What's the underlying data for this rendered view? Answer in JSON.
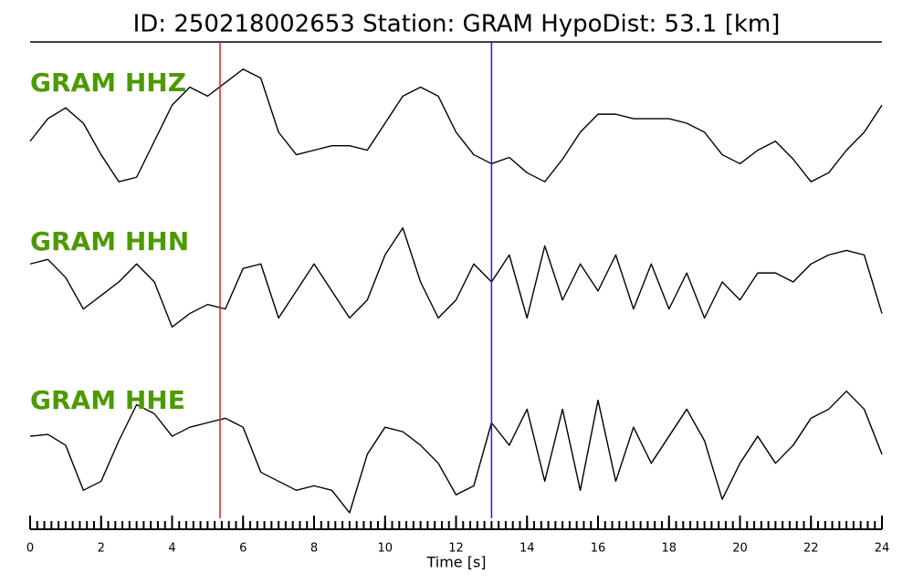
{
  "chart_data": {
    "type": "seismogram",
    "title": "ID: 250218002653   Station: GRAM   HypoDist:    53.1 [km]",
    "xlabel": "Time [s]",
    "xlim": [
      0,
      24
    ],
    "xticks": [
      0,
      2,
      4,
      6,
      8,
      10,
      12,
      14,
      16,
      18,
      20,
      22,
      24
    ],
    "xminorticks": [
      0,
      0.2,
      0.4,
      0.6,
      0.8,
      1,
      1.2,
      1.4,
      1.6,
      1.8,
      2,
      2.2,
      2.4,
      2.6,
      2.8,
      3,
      3.2,
      3.4,
      3.6,
      3.8,
      4,
      4.2,
      4.4,
      4.6,
      4.8,
      5,
      5.2,
      5.4,
      5.6,
      5.8,
      6,
      6.2,
      6.4,
      6.6,
      6.8,
      7,
      7.2,
      7.4,
      7.6,
      7.8,
      8,
      8.2,
      8.4,
      8.6,
      8.8,
      9,
      9.2,
      9.4,
      9.6,
      9.8,
      10,
      10.2,
      10.4,
      10.6,
      10.8,
      11,
      11.2,
      11.4,
      11.6,
      11.8,
      12,
      12.2,
      12.4,
      12.6,
      12.8,
      13,
      13.2,
      13.4,
      13.6,
      13.8,
      14,
      14.2,
      14.4,
      14.6,
      14.8,
      15,
      15.2,
      15.4,
      15.6,
      15.8,
      16,
      16.2,
      16.4,
      16.6,
      16.8,
      17,
      17.2,
      17.4,
      17.6,
      17.8,
      18,
      18.2,
      18.4,
      18.6,
      18.8,
      19,
      19.2,
      19.4,
      19.6,
      19.8,
      20,
      20.2,
      20.4,
      20.6,
      20.8,
      21,
      21.2,
      21.4,
      21.6,
      21.8,
      22,
      22.2,
      22.4,
      22.6,
      22.8,
      23,
      23.2,
      23.4,
      23.6,
      23.8,
      24
    ],
    "markers": [
      {
        "x": 5.35,
        "color": "#e41a1c"
      },
      {
        "x": 13.0,
        "color": "#1f1fd6"
      }
    ],
    "label_color": "#4d9a00",
    "x": [
      0,
      0.5,
      1,
      1.5,
      2,
      2.5,
      3,
      3.5,
      4,
      4.5,
      5,
      5.5,
      6,
      6.5,
      7,
      7.5,
      8,
      8.5,
      9,
      9.5,
      10,
      10.5,
      11,
      11.5,
      12,
      12.5,
      13,
      13.5,
      14,
      14.5,
      15,
      15.5,
      16,
      16.5,
      17,
      17.5,
      18,
      18.5,
      19,
      19.5,
      20,
      20.5,
      21,
      21.5,
      22,
      22.5,
      23,
      23.5,
      24
    ],
    "series": [
      {
        "name": "GRAM HHZ",
        "color": "#000000",
        "ylim": [
          -80,
          80
        ],
        "values": [
          -20,
          5,
          17,
          0,
          -35,
          -65,
          -60,
          -20,
          20,
          40,
          30,
          45,
          60,
          50,
          -10,
          -35,
          -30,
          -25,
          -25,
          -30,
          0,
          30,
          40,
          30,
          -10,
          -35,
          -45,
          -38,
          -55,
          -65,
          -40,
          -10,
          10,
          10,
          5,
          5,
          5,
          0,
          -10,
          -35,
          -45,
          -30,
          -20,
          -40,
          -65,
          -55,
          -30,
          -10,
          20
        ]
      },
      {
        "name": "GRAM HHN",
        "color": "#000000",
        "ylim": [
          -80,
          80
        ],
        "values": [
          20,
          25,
          5,
          -30,
          -15,
          0,
          20,
          0,
          -50,
          -35,
          -25,
          -30,
          15,
          20,
          -40,
          -10,
          20,
          -10,
          -40,
          -20,
          30,
          60,
          0,
          -40,
          -20,
          20,
          0,
          30,
          -40,
          40,
          -20,
          20,
          -10,
          30,
          -30,
          20,
          -30,
          10,
          -40,
          0,
          -20,
          10,
          10,
          0,
          20,
          30,
          35,
          30,
          -35
        ]
      },
      {
        "name": "GRAM HHE",
        "color": "#000000",
        "ylim": [
          -80,
          80
        ],
        "values": [
          5,
          7,
          -5,
          -55,
          -45,
          0,
          40,
          30,
          5,
          15,
          20,
          25,
          15,
          -35,
          -45,
          -55,
          -50,
          -55,
          -80,
          -15,
          15,
          10,
          -5,
          -25,
          -60,
          -50,
          20,
          -5,
          35,
          -45,
          35,
          -55,
          45,
          -45,
          15,
          -25,
          5,
          35,
          0,
          -65,
          -25,
          5,
          -25,
          -5,
          25,
          35,
          55,
          35,
          -15
        ]
      }
    ]
  }
}
